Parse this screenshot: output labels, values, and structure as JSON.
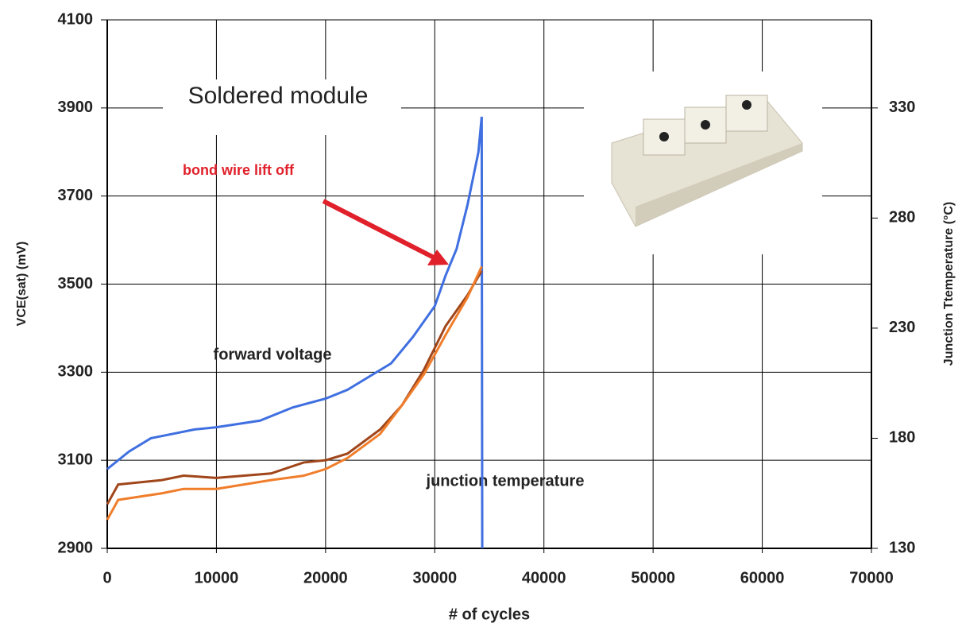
{
  "chart_data": {
    "type": "line",
    "title": "Soldered  module",
    "x_label": "# of cycles",
    "y_label": "VCE(sat) (mV)",
    "y2_label": "Junction Ttemperature (°C)",
    "annotations": [
      "bond wire lift off",
      "forward voltage",
      "junction temperature"
    ],
    "xlim": [
      0,
      70000
    ],
    "xticks": [
      0,
      10000,
      20000,
      30000,
      40000,
      50000,
      60000,
      70000
    ],
    "ylim": [
      2900,
      4100
    ],
    "yticks": [
      2900,
      3100,
      3300,
      3500,
      3700,
      3900,
      4100
    ],
    "y2lim": [
      130,
      370
    ],
    "y2ticks": [
      130,
      180,
      230,
      280,
      330
    ],
    "grid": true,
    "series": [
      {
        "name": "forward voltage",
        "color": "#3f6fe0",
        "x": [
          0,
          2000,
          4000,
          6000,
          8000,
          10000,
          14000,
          17000,
          20000,
          22000,
          24000,
          26000,
          28000,
          30000,
          31000,
          32000,
          33000,
          34000,
          34300,
          34350
        ],
        "values": [
          3080,
          3120,
          3150,
          3160,
          3170,
          3175,
          3190,
          3220,
          3240,
          3260,
          3290,
          3320,
          3380,
          3450,
          3520,
          3580,
          3680,
          3800,
          3880,
          2900
        ]
      },
      {
        "name": "junction temperature",
        "color": "#a0461a",
        "axis": "y2",
        "x": [
          0,
          1000,
          5000,
          7000,
          10000,
          15000,
          18000,
          20000,
          22000,
          25000,
          27000,
          29000,
          31000,
          33000,
          34300
        ],
        "values": [
          150,
          159,
          161,
          163,
          162,
          164,
          169,
          170,
          173,
          184,
          195,
          211,
          231,
          245,
          256
        ]
      },
      {
        "name": "junction temperature",
        "color": "#f07d2a",
        "axis": "y2",
        "x": [
          0,
          1000,
          5000,
          7000,
          10000,
          15000,
          18000,
          20000,
          22000,
          25000,
          27000,
          29000,
          31000,
          33000,
          34300
        ],
        "values": [
          143,
          152,
          155,
          157,
          157,
          161,
          163,
          166,
          171,
          182,
          195,
          209,
          227,
          244,
          258
        ]
      }
    ]
  }
}
